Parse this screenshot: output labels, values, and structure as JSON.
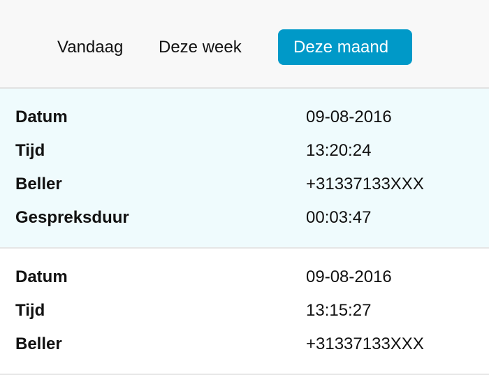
{
  "tabs": [
    {
      "label": "Vandaag",
      "active": false
    },
    {
      "label": "Deze week",
      "active": false
    },
    {
      "label": "Deze maand",
      "active": true
    }
  ],
  "accent": "#0099c8",
  "records": [
    {
      "fields": [
        {
          "label": "Datum",
          "value": "09-08-2016"
        },
        {
          "label": "Tijd",
          "value": "13:20:24"
        },
        {
          "label": "Beller",
          "value": "+31337133XXX"
        },
        {
          "label": "Gespreksduur",
          "value": "00:03:47"
        }
      ]
    },
    {
      "fields": [
        {
          "label": "Datum",
          "value": "09-08-2016"
        },
        {
          "label": "Tijd",
          "value": "13:15:27"
        },
        {
          "label": "Beller",
          "value": "+31337133XXX"
        }
      ]
    }
  ]
}
